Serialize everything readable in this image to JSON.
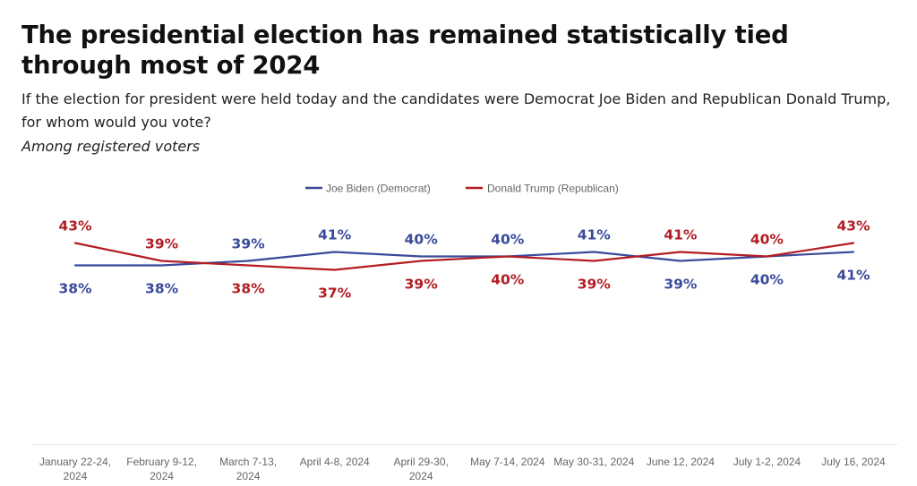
{
  "header": {
    "title": "The presidential election has remained statistically tied through most of 2024",
    "subtitle": "If the election for president were held today and the candidates were Democrat Joe Biden and Republican Donald Trump, for whom would you vote?",
    "note": "Among registered voters"
  },
  "chart_data": {
    "type": "line",
    "title": "The presidential election has remained statistically tied through most of 2024",
    "subtitle": "If the election for president were held today and the candidates were Democrat Joe Biden and Republican Donald Trump, for whom would you vote?",
    "note": "Among registered voters",
    "categories": [
      "January 22-24, 2024",
      "February 9-12, 2024",
      "March 7-13, 2024",
      "April 4-8, 2024",
      "April 29-30, 2024",
      "May 7-14, 2024",
      "May 30-31, 2024",
      "June 12, 2024",
      "July 1-2, 2024",
      "July 16, 2024"
    ],
    "category_lines": [
      [
        "January 22-24,",
        "2024"
      ],
      [
        "February 9-12,",
        "2024"
      ],
      [
        "March 7-13,",
        "2024"
      ],
      [
        "April 4-8, 2024"
      ],
      [
        "April 29-30,",
        "2024"
      ],
      [
        "May 7-14, 2024"
      ],
      [
        "May 30-31, 2024"
      ],
      [
        "June 12, 2024"
      ],
      [
        "July 1-2, 2024"
      ],
      [
        "July 16, 2024"
      ]
    ],
    "series": [
      {
        "name": "Joe Biden (Democrat)",
        "color": "#3a4a9a",
        "values": [
          38,
          38,
          39,
          41,
          40,
          40,
          41,
          39,
          40,
          41
        ],
        "labels": [
          "38%",
          "38%",
          "39%",
          "41%",
          "40%",
          "40%",
          "41%",
          "39%",
          "40%",
          "41%"
        ]
      },
      {
        "name": "Donald Trump (Republican)",
        "color": "#b21d24",
        "values": [
          43,
          39,
          38,
          37,
          39,
          40,
          39,
          41,
          40,
          43
        ],
        "labels": [
          "43%",
          "39%",
          "38%",
          "37%",
          "39%",
          "40%",
          "39%",
          "41%",
          "40%",
          "43%"
        ]
      }
    ],
    "legend_position": "top-center",
    "grid": false,
    "y_axis_visible": false
  }
}
